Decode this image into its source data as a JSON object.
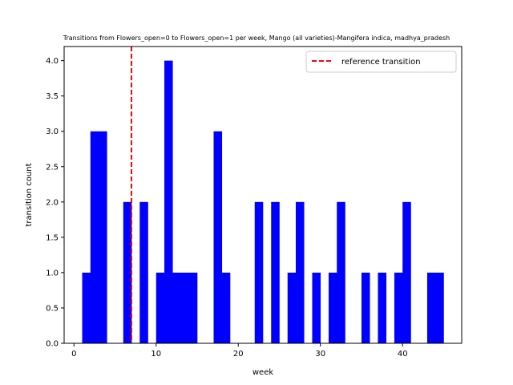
{
  "chart_data": {
    "type": "bar",
    "title": "Transitions from Flowers_open=0 to Flowers_open=1 per week, Mango (all varieties)-Mangifera indica, madhya_pradesh",
    "xlabel": "week",
    "ylabel": "transition count",
    "xlim": [
      -1.2,
      47.2
    ],
    "ylim": [
      0,
      4.2
    ],
    "xticks": [
      0,
      10,
      20,
      30,
      40
    ],
    "yticks": [
      0.0,
      0.5,
      1.0,
      1.5,
      2.0,
      2.5,
      3.0,
      3.5,
      4.0
    ],
    "bar_color": "#0000ff",
    "series": [
      {
        "name": "",
        "x": [
          1,
          2,
          3,
          6,
          8,
          10,
          11,
          12,
          13,
          14,
          17,
          18,
          22,
          24,
          26,
          27,
          29,
          31,
          32,
          35,
          37,
          39,
          40,
          43,
          44
        ],
        "values": [
          1,
          3,
          3,
          2,
          2,
          1,
          4,
          1,
          1,
          1,
          3,
          1,
          2,
          2,
          1,
          2,
          1,
          1,
          2,
          1,
          1,
          1,
          2,
          1,
          1
        ]
      }
    ],
    "reference_line": {
      "x": 7,
      "color": "#ff0000",
      "style": "dashed"
    },
    "legend": {
      "placement": "top-right",
      "entries": [
        "reference transition"
      ]
    }
  }
}
